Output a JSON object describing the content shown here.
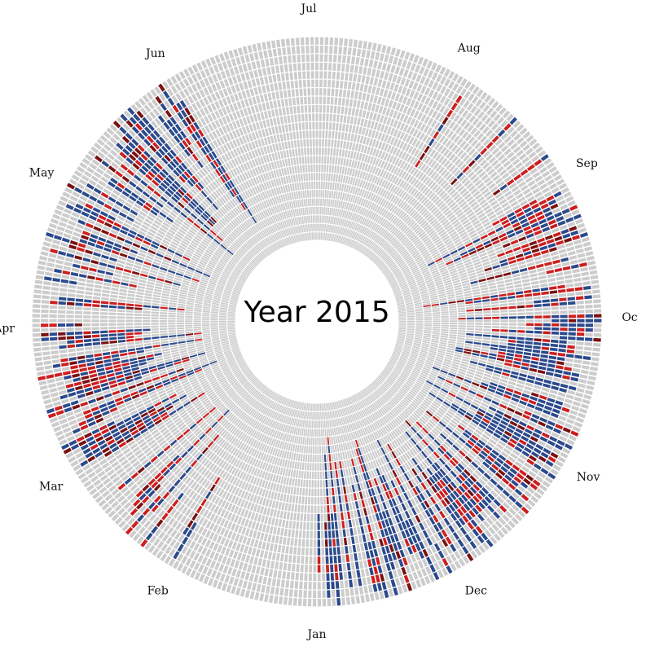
{
  "chart_data": {
    "type": "radial-heatmap",
    "title": "Year 2015",
    "start_month_at_bottom": "Jan",
    "direction": "clockwise",
    "rings": 24,
    "month_labels": [
      "Jan",
      "Feb",
      "Mar",
      "Apr",
      "May",
      "Jun",
      "Jul",
      "Aug",
      "Sep",
      "Oc",
      "Nov",
      "Dec"
    ],
    "categories": [
      {
        "name": "none",
        "color": "#cccccc"
      },
      {
        "name": "blue",
        "color": "#2b4a8c"
      },
      {
        "name": "red",
        "color": "#cc1f1f"
      },
      {
        "name": "darkred",
        "color": "#7a1010"
      }
    ],
    "activity_profile": {
      "months": [
        "Jan",
        "Feb",
        "Mar",
        "Apr",
        "May",
        "Jun",
        "Jul",
        "Aug",
        "Sep",
        "Oc",
        "Nov",
        "Dec"
      ],
      "density": [
        0.0,
        0.35,
        0.8,
        0.55,
        0.75,
        0.04,
        0.0,
        0.12,
        0.55,
        0.75,
        0.8,
        0.65
      ],
      "blue_share": [
        0.0,
        0.45,
        0.55,
        0.6,
        0.7,
        0.5,
        0.0,
        0.3,
        0.35,
        0.7,
        0.65,
        0.75
      ]
    }
  }
}
